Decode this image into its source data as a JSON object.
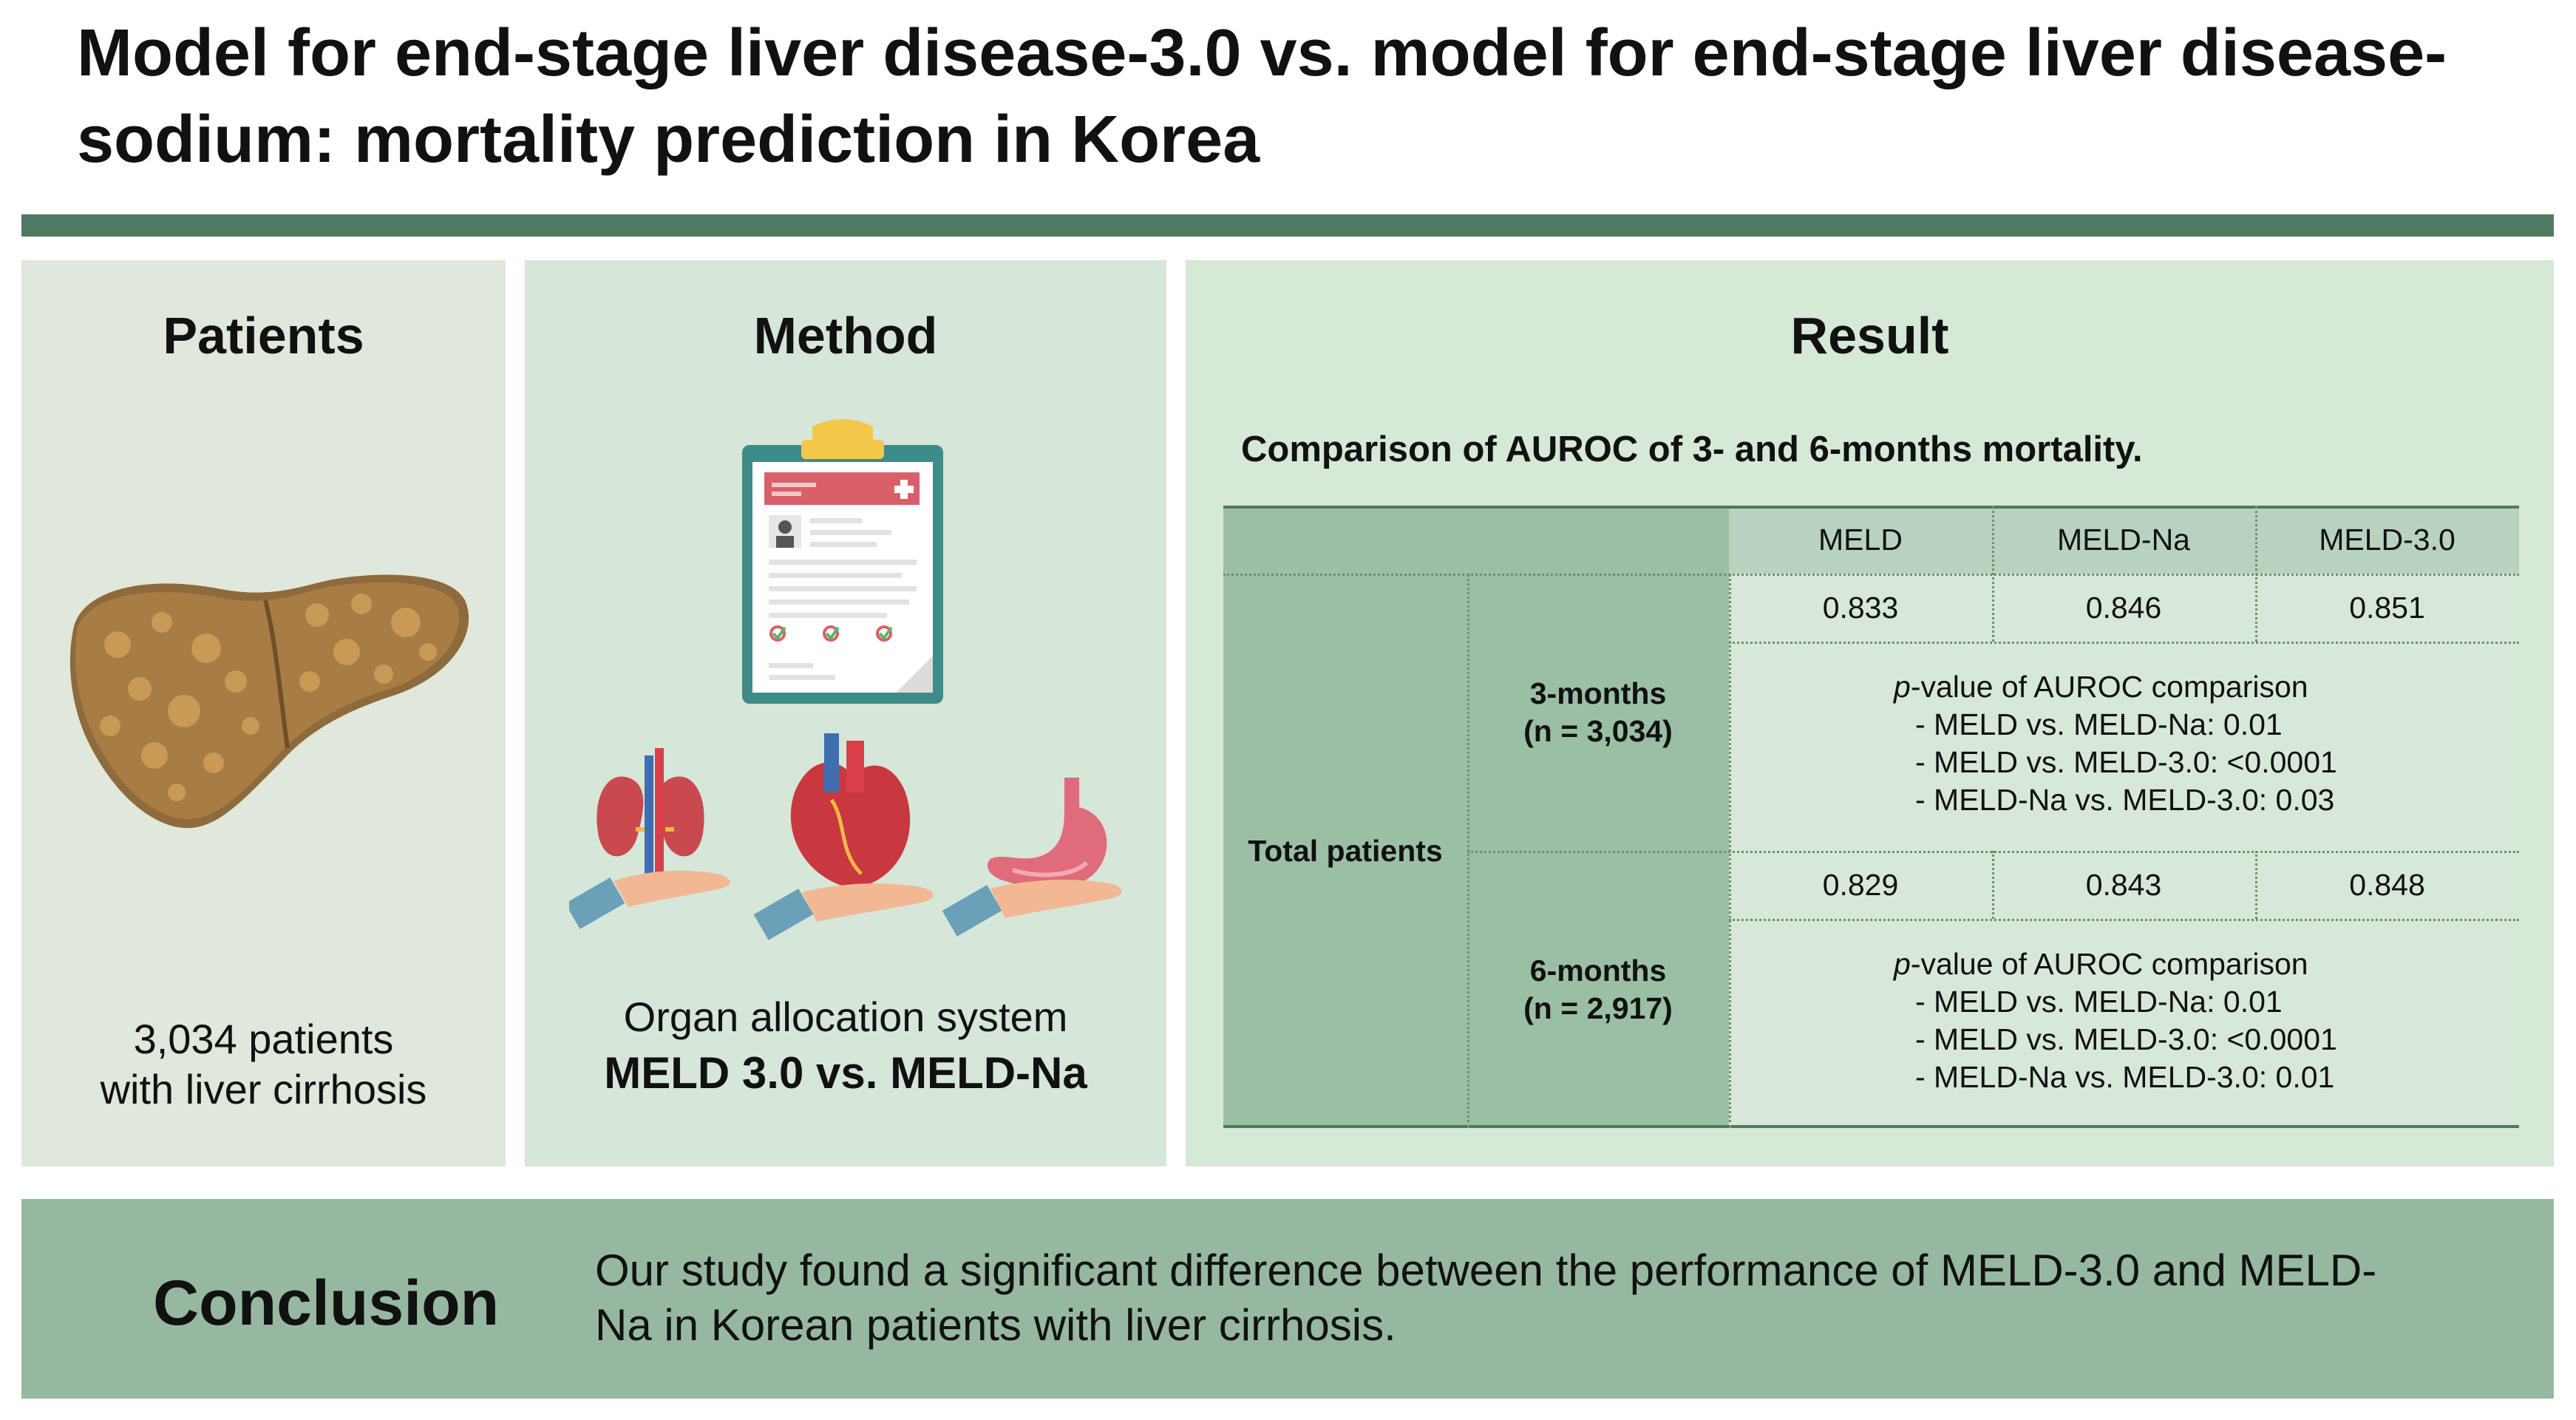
{
  "title": "Model for end-stage liver disease-3.0 vs. model for end-stage liver disease-sodium: mortality prediction in Korea",
  "patients": {
    "heading": "Patients",
    "caption_line1": "3,034 patients",
    "caption_line2": "with liver cirrhosis"
  },
  "method": {
    "heading": "Method",
    "caption": "Organ allocation system",
    "caption_bold": "MELD 3.0 vs. MELD-Na"
  },
  "result": {
    "heading": "Result",
    "subheading": "Comparison of AUROC of 3- and 6-months mortality.",
    "table": {
      "columns": [
        "MELD",
        "MELD-Na",
        "MELD-3.0"
      ],
      "group_label": "Total patients",
      "rows": [
        {
          "label": "3-months",
          "n": "(n = 3,034)",
          "values": [
            "0.833",
            "0.846",
            "0.851"
          ],
          "pvalue_title_italic": "p",
          "pvalue_title_rest": "-value of AUROC comparison",
          "comparisons": [
            "- MELD vs. MELD-Na: 0.01",
            "- MELD vs. MELD-3.0: <0.0001",
            "- MELD-Na vs. MELD-3.0: 0.03"
          ]
        },
        {
          "label": "6-months",
          "n": "(n = 2,917)",
          "values": [
            "0.829",
            "0.843",
            "0.848"
          ],
          "pvalue_title_italic": "p",
          "pvalue_title_rest": "-value of AUROC comparison",
          "comparisons": [
            "- MELD vs. MELD-Na: 0.01",
            "- MELD vs. MELD-3.0: <0.0001",
            "- MELD-Na vs. MELD-3.0: 0.01"
          ]
        }
      ]
    }
  },
  "conclusion": {
    "heading": "Conclusion",
    "text_line1": "Our study found a significant difference between the performance of MELD-3.0 and MELD-",
    "text_line2": "Na in Korean patients with liver cirrhosis."
  },
  "icons": [
    "liver-icon",
    "clipboard-icon",
    "kidney-hand-icon",
    "heart-hand-icon",
    "stomach-hand-icon"
  ],
  "colors": {
    "rule": "#4e7a62",
    "conclusion_bg": "#97b8a0",
    "table_dark": "#9bbfa5"
  }
}
